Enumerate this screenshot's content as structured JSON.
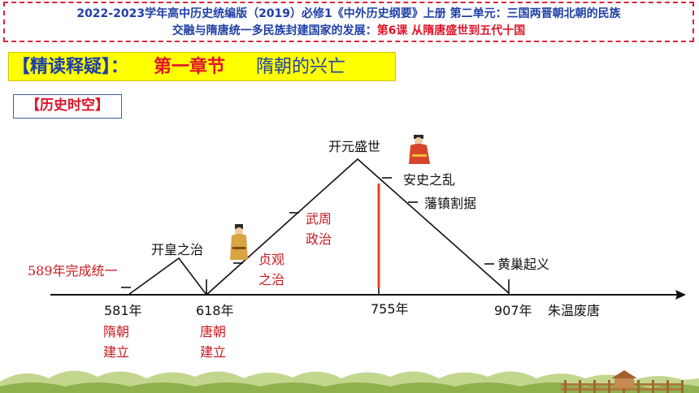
{
  "header": {
    "line1_blue": "2022-2023学年高中历史统编版（2019）必修1《中外历史纲要》上册 第二单元：三国两晋朝北朝的民族",
    "line2_blue": "交融与隋唐统一多民族封建国家的发展：",
    "line2_red": "第6课 从隋唐盛世到五代十国"
  },
  "section": {
    "part1": "【精读释疑】：",
    "part2": "第一章节",
    "part3": "隋朝的兴亡"
  },
  "tag": "【历史时空】",
  "timeline": {
    "years": [
      "581年",
      "618年",
      "755年",
      "907年"
    ],
    "events": {
      "unify": "589年完成统一",
      "kaihuang": "开皇之治",
      "zhenguan_1": "贞观",
      "zhenguan_2": "之治",
      "wuzhou_1": "武周",
      "wuzhou_2": "政治",
      "kaiyuan": "开元盛世",
      "anshi": "安史之乱",
      "fanzhen": "藩镇割据",
      "huangchao": "黄巢起义",
      "zhuwen": "朱温废唐",
      "sui_1": "隋朝",
      "sui_2": "建立",
      "tang_1": "唐朝",
      "tang_2": "建立"
    }
  },
  "colors": {
    "accent_red": "#e0142a",
    "accent_blue": "#1f3fa6",
    "highlight": "#ffff00",
    "marker": "#e8431c"
  }
}
